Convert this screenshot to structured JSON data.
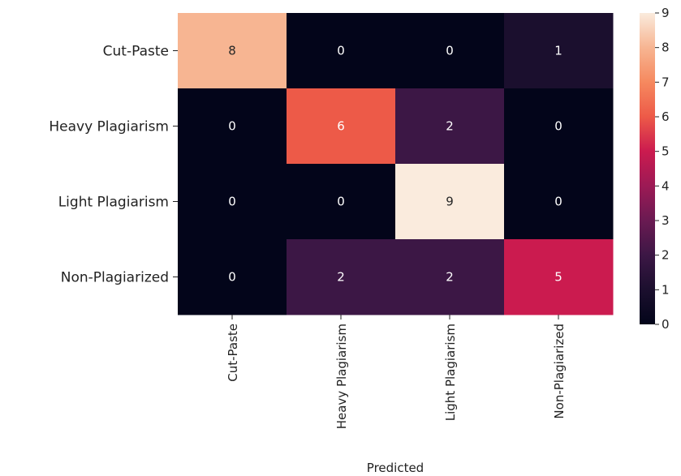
{
  "chart_data": {
    "type": "heatmap",
    "title": "",
    "xlabel": "Predicted",
    "ylabel": "",
    "row_labels": [
      "Cut-Paste",
      "Heavy Plagiarism",
      "Light Plagiarism",
      "Non-Plagiarized"
    ],
    "col_labels": [
      "Cut-Paste",
      "Heavy Plagiarism",
      "Light Plagiarism",
      "Non-Plagiarized"
    ],
    "values": [
      [
        8,
        0,
        0,
        1
      ],
      [
        0,
        6,
        2,
        0
      ],
      [
        0,
        0,
        9,
        0
      ],
      [
        0,
        2,
        2,
        5
      ]
    ],
    "colorbar": {
      "min": 0,
      "max": 9,
      "ticks": [
        "0",
        "1",
        "2",
        "3",
        "4",
        "5",
        "6",
        "7",
        "8",
        "9"
      ],
      "colormap": "rocket"
    }
  }
}
